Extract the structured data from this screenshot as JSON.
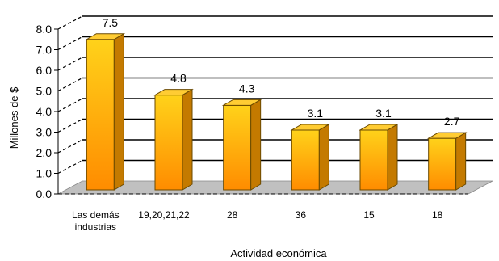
{
  "chart_data": {
    "type": "bar",
    "categories": [
      [
        "Las demás",
        "industrias"
      ],
      [
        "19,20,21,22"
      ],
      [
        "28"
      ],
      [
        "36"
      ],
      [
        "15"
      ],
      [
        "18"
      ]
    ],
    "values": [
      7.5,
      4.8,
      4.3,
      3.1,
      3.1,
      2.7
    ],
    "data_labels": [
      "7.5",
      "4.8",
      "4.3",
      "3.1",
      "3.1",
      "2.7"
    ],
    "xlabel": "Actividad económica",
    "ylabel": "Millones de $",
    "ylim": [
      0,
      8
    ],
    "yticks": [
      "0.0",
      "1.0",
      "2.0",
      "3.0",
      "4.0",
      "5.0",
      "6.0",
      "7.0",
      "8.0"
    ],
    "grid": true,
    "style": "3d",
    "colors": {
      "bar_front_light": "#ffd21a",
      "bar_front_dark": "#ff8c00",
      "bar_side": "#c47a00",
      "bar_top": "#ffcc33",
      "bar_outline": "#6b4a00",
      "floor": "#c0c0c0",
      "gridline": "#000000"
    }
  }
}
